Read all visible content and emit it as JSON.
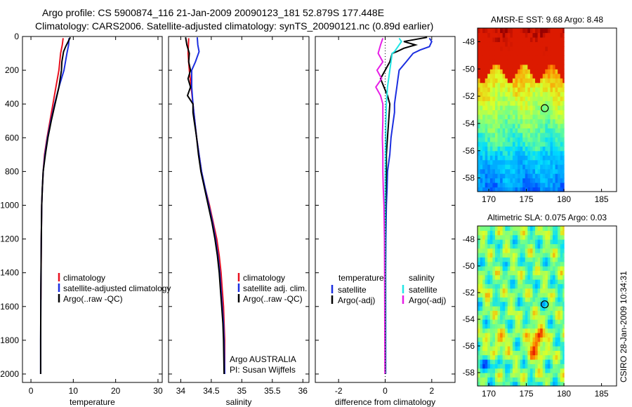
{
  "title_line1": "Argo profile: CS 5900874_116 21-Jan-2009 20090123_181 52.879S 177.448E",
  "title_line2": "Climatology: CARS2006. Satellite-adjusted climatology: synTS_20090121.nc (0.89d earlier)",
  "side_stamp": "CSIRO 28-Jan-2009 10:34:31",
  "colors": {
    "red": "#e8101e",
    "blue": "#1b2ee0",
    "black": "#000000",
    "cyan": "#22e6e6",
    "magenta": "#e61ee6"
  },
  "chart_data": [
    {
      "id": "temperature",
      "type": "line",
      "xlabel": "temperature",
      "ylabel": "",
      "xlim": [
        -2,
        31
      ],
      "ylim": [
        2050,
        0
      ],
      "x_ticks": [
        0,
        10,
        20,
        30
      ],
      "y_ticks": [
        0,
        200,
        400,
        600,
        800,
        1000,
        1200,
        1400,
        1600,
        1800,
        2000
      ],
      "legend_location": "lower-left",
      "legend": [
        "climatology",
        "satellite-adjusted climatology",
        "Argo(..raw -QC)"
      ],
      "series": [
        {
          "name": "climatology",
          "color": "red",
          "points": [
            [
              7.6,
              10
            ],
            [
              7.4,
              50
            ],
            [
              7.0,
              100
            ],
            [
              6.6,
              200
            ],
            [
              5.9,
              300
            ],
            [
              5.2,
              400
            ],
            [
              4.5,
              500
            ],
            [
              3.8,
              600
            ],
            [
              3.2,
              700
            ],
            [
              2.9,
              800
            ],
            [
              2.7,
              900
            ],
            [
              2.55,
              1000
            ],
            [
              2.45,
              1200
            ],
            [
              2.4,
              1400
            ],
            [
              2.35,
              1560
            ]
          ]
        },
        {
          "name": "satellite-adjusted climatology",
          "color": "blue",
          "points": [
            [
              9.0,
              10
            ],
            [
              8.9,
              50
            ],
            [
              8.5,
              100
            ],
            [
              7.8,
              200
            ],
            [
              6.6,
              300
            ],
            [
              5.6,
              400
            ],
            [
              4.7,
              500
            ],
            [
              3.9,
              600
            ],
            [
              3.3,
              700
            ],
            [
              2.9,
              800
            ],
            [
              2.7,
              900
            ],
            [
              2.55,
              1000
            ],
            [
              2.45,
              1200
            ],
            [
              2.35,
              1500
            ],
            [
              2.3,
              1800
            ],
            [
              2.3,
              2000
            ]
          ]
        },
        {
          "name": "Argo(..raw -QC)",
          "color": "black",
          "points": [
            [
              9.3,
              5
            ],
            [
              8.2,
              60
            ],
            [
              7.7,
              90
            ],
            [
              7.3,
              150
            ],
            [
              7.2,
              200
            ],
            [
              6.6,
              300
            ],
            [
              5.7,
              400
            ],
            [
              4.8,
              500
            ],
            [
              4.0,
              600
            ],
            [
              3.4,
              700
            ],
            [
              2.9,
              800
            ],
            [
              2.7,
              900
            ],
            [
              2.55,
              1000
            ],
            [
              2.45,
              1200
            ],
            [
              2.35,
              1500
            ],
            [
              2.3,
              1800
            ],
            [
              2.3,
              2000
            ]
          ]
        }
      ]
    },
    {
      "id": "salinity",
      "type": "line",
      "xlabel": "salinity",
      "ylabel": "",
      "xlim": [
        33.8,
        36.1
      ],
      "ylim": [
        2050,
        0
      ],
      "x_ticks": [
        34,
        34.5,
        35,
        35.5,
        36
      ],
      "legend_location": "lower-left",
      "legend": [
        "climatology",
        "satellite adj. clim.",
        "Argo(..raw -QC)"
      ],
      "annotation": [
        "Argo AUSTRALIA",
        "PI: Susan Wijffels"
      ],
      "series": [
        {
          "name": "climatology",
          "color": "red",
          "points": [
            [
              34.13,
              10
            ],
            [
              34.12,
              100
            ],
            [
              34.14,
              200
            ],
            [
              34.17,
              300
            ],
            [
              34.2,
              400
            ],
            [
              34.23,
              500
            ],
            [
              34.26,
              600
            ],
            [
              34.3,
              700
            ],
            [
              34.34,
              800
            ],
            [
              34.4,
              900
            ],
            [
              34.47,
              1000
            ],
            [
              34.53,
              1100
            ],
            [
              34.59,
              1200
            ],
            [
              34.63,
              1300
            ],
            [
              34.66,
              1400
            ],
            [
              34.68,
              1500
            ],
            [
              34.7,
              1600
            ],
            [
              34.71,
              1700
            ],
            [
              34.72,
              1800
            ],
            [
              34.72,
              2000
            ]
          ]
        },
        {
          "name": "satellite adj. clim.",
          "color": "blue",
          "points": [
            [
              34.27,
              5
            ],
            [
              34.28,
              50
            ],
            [
              34.3,
              90
            ],
            [
              34.24,
              150
            ],
            [
              34.18,
              200
            ],
            [
              34.18,
              300
            ],
            [
              34.2,
              400
            ],
            [
              34.23,
              500
            ],
            [
              34.26,
              600
            ],
            [
              34.3,
              700
            ],
            [
              34.34,
              800
            ],
            [
              34.4,
              900
            ],
            [
              34.46,
              1000
            ],
            [
              34.52,
              1100
            ],
            [
              34.57,
              1200
            ],
            [
              34.61,
              1300
            ],
            [
              34.64,
              1400
            ],
            [
              34.66,
              1500
            ],
            [
              34.68,
              1600
            ],
            [
              34.7,
              1700
            ],
            [
              34.71,
              1800
            ],
            [
              34.72,
              2000
            ]
          ]
        },
        {
          "name": "Argo(..raw -QC)",
          "color": "black",
          "points": [
            [
              34.08,
              5
            ],
            [
              34.1,
              50
            ],
            [
              34.14,
              100
            ],
            [
              34.13,
              150
            ],
            [
              34.16,
              200
            ],
            [
              34.12,
              250
            ],
            [
              34.16,
              300
            ],
            [
              34.11,
              350
            ],
            [
              34.2,
              400
            ],
            [
              34.2,
              450
            ],
            [
              34.22,
              500
            ],
            [
              34.24,
              550
            ],
            [
              34.26,
              600
            ],
            [
              34.29,
              700
            ],
            [
              34.33,
              800
            ],
            [
              34.39,
              900
            ],
            [
              34.45,
              1000
            ],
            [
              34.51,
              1100
            ],
            [
              34.56,
              1200
            ],
            [
              34.6,
              1300
            ],
            [
              34.63,
              1400
            ],
            [
              34.65,
              1500
            ],
            [
              34.67,
              1600
            ],
            [
              34.69,
              1700
            ],
            [
              34.7,
              1800
            ],
            [
              34.71,
              2000
            ]
          ]
        }
      ]
    },
    {
      "id": "difference",
      "type": "line",
      "xlabel": "difference from climatology",
      "ylabel": "",
      "xlim": [
        -3,
        3
      ],
      "ylim": [
        2050,
        0
      ],
      "x_ticks": [
        -2,
        0,
        2
      ],
      "legend_location": "lower-left",
      "legend_col_headers": [
        "temperature",
        "salinity"
      ],
      "legend": [
        "satellite",
        "Argo(-adj)",
        "satellite",
        "Argo(-adj)"
      ],
      "series": [
        {
          "name": "temperature satellite",
          "color": "blue",
          "points": [
            [
              1.9,
              10
            ],
            [
              2.0,
              30
            ],
            [
              1.9,
              60
            ],
            [
              1.5,
              80
            ],
            [
              1.2,
              100
            ],
            [
              0.9,
              150
            ],
            [
              0.6,
              200
            ],
            [
              0.55,
              250
            ],
            [
              0.5,
              300
            ],
            [
              0.45,
              350
            ],
            [
              0.4,
              400
            ],
            [
              0.4,
              450
            ],
            [
              0.35,
              500
            ],
            [
              0.25,
              600
            ],
            [
              0.2,
              700
            ],
            [
              0.1,
              800
            ],
            [
              0.08,
              900
            ],
            [
              0.05,
              1000
            ],
            [
              0.03,
              1200
            ],
            [
              0.02,
              1400
            ],
            [
              0.02,
              2000
            ]
          ]
        },
        {
          "name": "temperature Argo(-adj)",
          "color": "black",
          "points": [
            [
              1.8,
              5
            ],
            [
              0.8,
              30
            ],
            [
              1.3,
              50
            ],
            [
              0.8,
              70
            ],
            [
              0.5,
              90
            ],
            [
              0.3,
              100
            ],
            [
              0.2,
              150
            ],
            [
              0.0,
              200
            ],
            [
              -0.2,
              250
            ],
            [
              -0.05,
              300
            ],
            [
              0.1,
              350
            ],
            [
              0.2,
              400
            ],
            [
              0.15,
              500
            ],
            [
              0.1,
              600
            ],
            [
              0.05,
              700
            ],
            [
              0.05,
              800
            ],
            [
              0.02,
              1000
            ],
            [
              0.01,
              1200
            ],
            [
              0.01,
              2000
            ]
          ]
        },
        {
          "name": "salinity satellite",
          "color": "cyan",
          "points": [
            [
              0.6,
              10
            ],
            [
              0.7,
              30
            ],
            [
              0.6,
              50
            ],
            [
              0.4,
              90
            ],
            [
              0.3,
              100
            ],
            [
              0.2,
              200
            ],
            [
              0.1,
              300
            ],
            [
              0.05,
              400
            ],
            [
              0.03,
              500
            ],
            [
              0.02,
              600
            ],
            [
              0.01,
              800
            ],
            [
              0.0,
              1000
            ],
            [
              0.0,
              2000
            ]
          ]
        },
        {
          "name": "salinity Argo(-adj)",
          "color": "magenta",
          "points": [
            [
              -0.1,
              10
            ],
            [
              -0.2,
              50
            ],
            [
              -0.3,
              100
            ],
            [
              -0.1,
              150
            ],
            [
              -0.35,
              200
            ],
            [
              -0.15,
              250
            ],
            [
              -0.4,
              300
            ],
            [
              -0.2,
              350
            ],
            [
              -0.1,
              400
            ],
            [
              -0.1,
              500
            ],
            [
              -0.12,
              600
            ],
            [
              -0.1,
              700
            ],
            [
              -0.1,
              800
            ],
            [
              -0.08,
              900
            ],
            [
              -0.05,
              1000
            ],
            [
              -0.03,
              1200
            ],
            [
              -0.02,
              1500
            ],
            [
              -0.01,
              2000
            ]
          ]
        }
      ]
    },
    {
      "id": "sst_map",
      "type": "heatmap",
      "title": "AMSR-E SST: 9.68 Argo: 8.48",
      "xlim": [
        168.5,
        187
      ],
      "ylim": [
        -59,
        -47
      ],
      "x_ticks": [
        170,
        175,
        180,
        185
      ],
      "y_ticks": [
        -48,
        -50,
        -52,
        -54,
        -56,
        -58
      ],
      "data_extent_lon": [
        168.5,
        180
      ],
      "float_position": {
        "lon": 177.448,
        "lat": -52.879
      }
    },
    {
      "id": "sla_map",
      "type": "heatmap",
      "title": "Altimetric SLA: 0.075 Argo: 0.03",
      "xlim": [
        168.5,
        187
      ],
      "ylim": [
        -59,
        -47
      ],
      "x_ticks": [
        170,
        175,
        180,
        185
      ],
      "y_ticks": [
        -48,
        -50,
        -52,
        -54,
        -56,
        -58
      ],
      "data_extent_lon": [
        168.5,
        180
      ],
      "float_position": {
        "lon": 177.448,
        "lat": -52.879
      }
    }
  ]
}
